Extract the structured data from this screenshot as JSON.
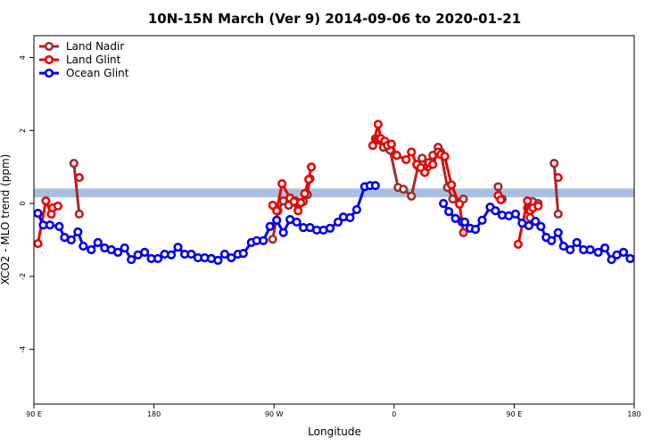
{
  "chart_data": {
    "type": "line",
    "title": "10N-15N March (Ver 9)   2014-09-06 to 2020-01-21",
    "x_label": "Longitude",
    "y_label": "XCO2 - MLO trend (ppm)",
    "xlim": [
      90,
      540
    ],
    "ylim": [
      -5.5,
      4.6
    ],
    "xticks": [
      {
        "value": 90,
        "label": "90 E"
      },
      {
        "value": 180,
        "label": "180"
      },
      {
        "value": 270,
        "label": "90 W"
      },
      {
        "value": 360,
        "label": "0"
      },
      {
        "value": 450,
        "label": "90 E"
      },
      {
        "value": 540,
        "label": "180"
      }
    ],
    "yticks": [
      -4,
      -2,
      0,
      2,
      4
    ],
    "reference_band": [
      0.17,
      0.41
    ],
    "reference_band_color": "#a8bfe0",
    "legend": "top-left",
    "series": [
      {
        "name": "Land Nadir",
        "color": "#a52a2a",
        "x": [
          120,
          124,
          200,
          269,
          273,
          277,
          281,
          286,
          288,
          292,
          295,
          297,
          320,
          346,
          349,
          352,
          357,
          363,
          367,
          373,
          378,
          381,
          385,
          389,
          393,
          395,
          400,
          404,
          412,
          425,
          438,
          441,
          450,
          460,
          462,
          464,
          468,
          475,
          480,
          483
        ],
        "values": [
          1.1,
          -0.29,
          null,
          -0.98,
          -0.2,
          0.07,
          -0.05,
          0.07,
          -0.05,
          0.05,
          0.24,
          0.68,
          null,
          1.78,
          1.73,
          1.54,
          1.46,
          0.44,
          0.39,
          0.2,
          1.02,
          1.24,
          1.0,
          1.32,
          1.54,
          1.41,
          0.44,
          0.12,
          0.12,
          null,
          0.46,
          0.12,
          null,
          -0.12,
          -0.39,
          0.05,
          0,
          null,
          1.1,
          -0.29
        ]
      },
      {
        "name": "Land Glint",
        "color": "#ee0000",
        "x": [
          93,
          99,
          103,
          104,
          108,
          116,
          124,
          200,
          269,
          272,
          276,
          282,
          285,
          288,
          290,
          293,
          296,
          298,
          320,
          344,
          348,
          350,
          353,
          355,
          358,
          362,
          369,
          373,
          377,
          380,
          383,
          386,
          389,
          393,
          395,
          398,
          403,
          409,
          412,
          425,
          438,
          440,
          446,
          453,
          460,
          462,
          464,
          468,
          475,
          483
        ],
        "values": [
          -1.1,
          0.07,
          -0.29,
          -0.12,
          -0.07,
          null,
          0.71,
          null,
          -0.05,
          -0.2,
          0.54,
          0.15,
          0.05,
          -0.2,
          0.02,
          0.27,
          0.66,
          1.0,
          null,
          1.59,
          2.17,
          1.78,
          1.71,
          1.59,
          1.63,
          1.32,
          1.2,
          1.41,
          1.07,
          0.98,
          0.85,
          1.12,
          1.07,
          1.41,
          1.34,
          1.29,
          0.51,
          -0.02,
          -0.8,
          null,
          0.22,
          0.1,
          null,
          -1.12,
          0.07,
          -0.2,
          -0.12,
          -0.07,
          null,
          0.71
        ]
      },
      {
        "name": "Ocean Glint",
        "color": "#0000ee",
        "x": [
          93,
          97,
          102,
          109,
          113,
          118,
          123,
          127,
          133,
          138,
          143,
          148,
          153,
          158,
          163,
          168,
          173,
          178,
          183,
          188,
          193,
          198,
          203,
          208,
          213,
          218,
          223,
          228,
          233,
          238,
          243,
          247,
          253,
          257,
          262,
          267,
          272,
          277,
          282,
          287,
          292,
          297,
          302,
          307,
          312,
          318,
          322,
          327,
          332,
          338,
          342,
          346,
          384,
          397,
          401,
          406,
          411,
          413,
          417,
          421,
          426,
          432,
          436,
          441,
          446,
          451,
          456,
          461,
          466,
          470,
          474,
          478,
          483,
          487,
          492,
          497,
          502,
          507,
          513,
          518,
          523,
          527,
          532,
          537
        ],
        "values": [
          -0.27,
          -0.59,
          -0.59,
          -0.63,
          -0.93,
          -1.0,
          -0.78,
          -1.17,
          -1.27,
          -1.07,
          -1.22,
          -1.27,
          -1.34,
          -1.22,
          -1.54,
          -1.41,
          -1.34,
          -1.51,
          -1.51,
          -1.39,
          -1.41,
          -1.2,
          -1.39,
          -1.39,
          -1.49,
          -1.49,
          -1.51,
          -1.56,
          -1.39,
          -1.49,
          -1.39,
          -1.37,
          -1.07,
          -1.02,
          -1.02,
          -0.63,
          -0.46,
          -0.8,
          -0.44,
          -0.51,
          -0.66,
          -0.66,
          -0.73,
          -0.73,
          -0.68,
          -0.51,
          -0.37,
          -0.39,
          -0.17,
          0.46,
          0.49,
          0.49,
          null,
          0,
          -0.22,
          -0.41,
          -0.51,
          -0.51,
          -0.68,
          -0.71,
          -0.46,
          -0.1,
          -0.2,
          -0.32,
          -0.34,
          -0.29,
          -0.54,
          -0.61,
          -0.49,
          -0.63,
          -0.93,
          -1.02,
          -0.8,
          -1.17,
          -1.27,
          -1.07,
          -1.27,
          -1.27,
          -1.34,
          -1.22,
          -1.54,
          -1.41,
          -1.34,
          -1.51
        ]
      }
    ]
  }
}
